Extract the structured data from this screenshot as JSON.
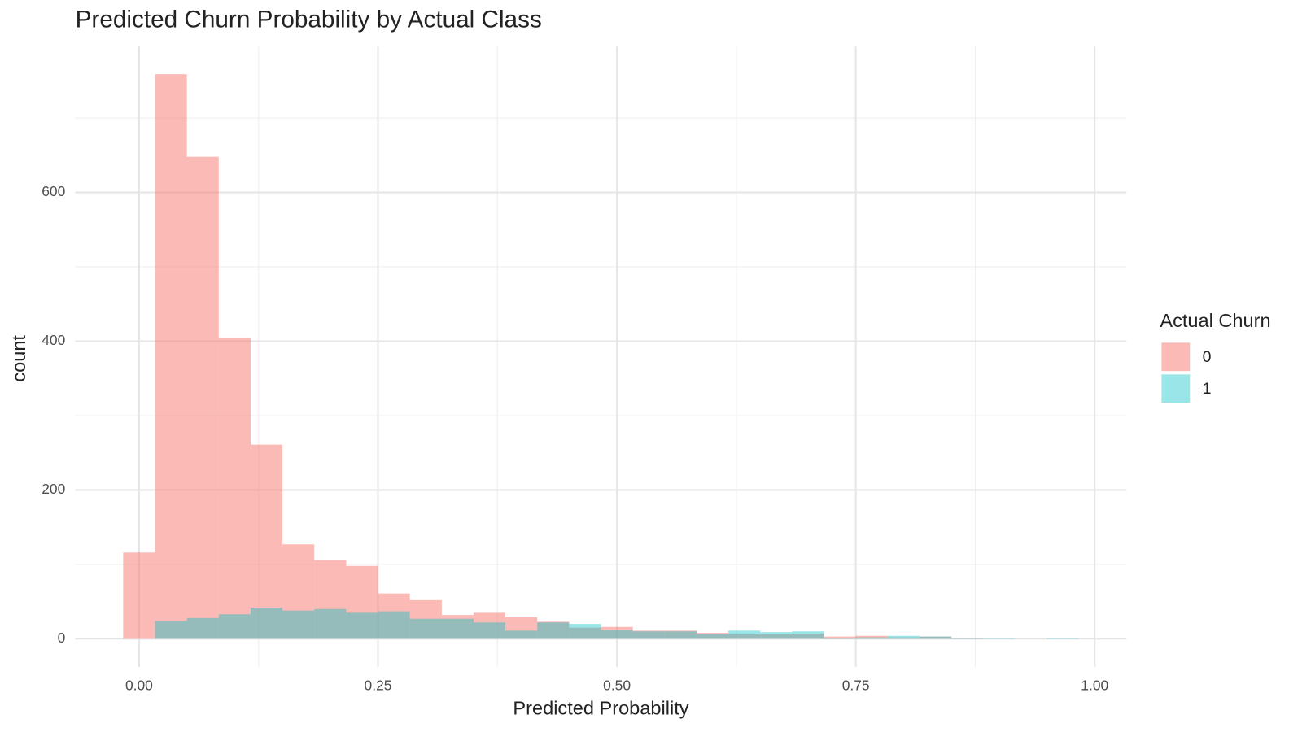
{
  "chart_data": {
    "type": "histogram",
    "title": "Predicted Churn Probability by Actual Class",
    "x_label": "Predicted Probability",
    "y_label": "count",
    "legend_title": "Actual Churn",
    "legend_position": "right",
    "grid": true,
    "bins": [
      -0.0167,
      0.0167,
      0.05,
      0.0833,
      0.1167,
      0.15,
      0.1833,
      0.2167,
      0.25,
      0.2833,
      0.3167,
      0.35,
      0.3833,
      0.4167,
      0.45,
      0.4833,
      0.5167,
      0.55,
      0.5833,
      0.6167,
      0.65,
      0.6833,
      0.7167,
      0.75,
      0.7833,
      0.8167,
      0.85,
      0.8833,
      0.9167,
      0.95,
      0.9833
    ],
    "series": [
      {
        "name": "0",
        "color": "#F8766D",
        "opacity": 0.5,
        "values": [
          116,
          759,
          648,
          404,
          261,
          127,
          106,
          98,
          61,
          52,
          32,
          35,
          29,
          23,
          15,
          16,
          11,
          11,
          8,
          6,
          6,
          7,
          3,
          4,
          2,
          3,
          1,
          0,
          0,
          0
        ]
      },
      {
        "name": "1",
        "color": "#00BFC4",
        "opacity": 0.4,
        "values": [
          0,
          24,
          28,
          33,
          42,
          38,
          40,
          35,
          37,
          27,
          27,
          22,
          11,
          22,
          20,
          12,
          10,
          10,
          7,
          11,
          9,
          10,
          1,
          2,
          4,
          3,
          1,
          1,
          0,
          1
        ]
      }
    ],
    "xlim": [
      -0.0667,
      1.0333
    ],
    "ylim": [
      -38,
      797
    ],
    "xticks": [
      {
        "value": 0,
        "label": "0.00"
      },
      0.25,
      {
        "value": 0.5,
        "label": "0.50"
      },
      0.75,
      {
        "value": 1,
        "label": "1.00"
      }
    ],
    "yticks": [
      0,
      200,
      400,
      600
    ]
  }
}
